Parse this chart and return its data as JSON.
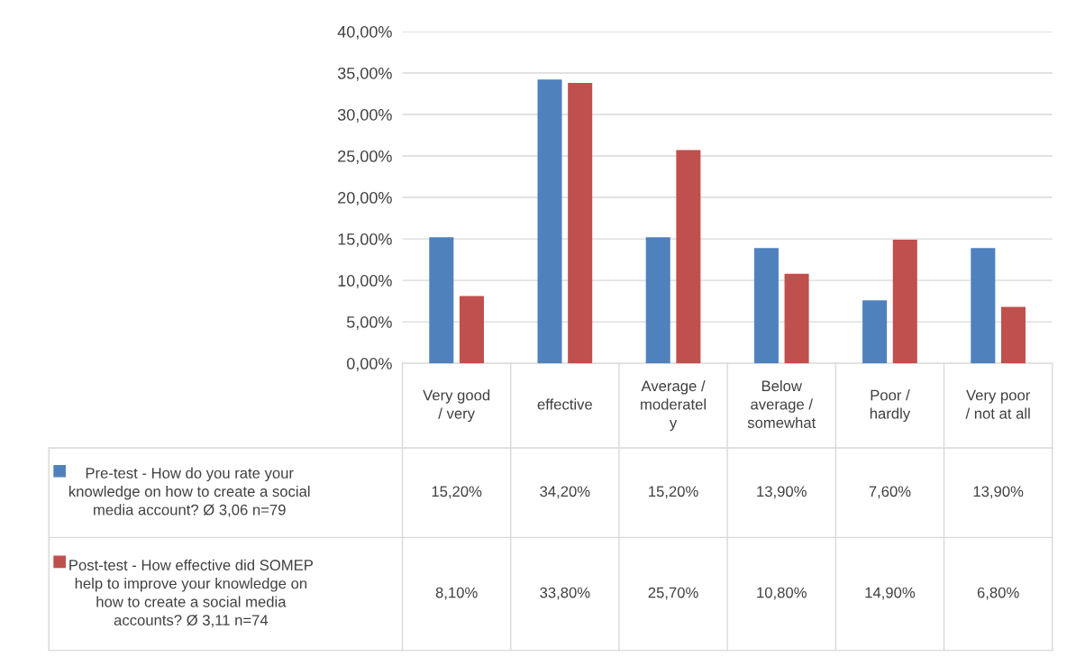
{
  "chart_data": {
    "type": "bar",
    "categories": [
      "Very good\n/ very",
      "effective",
      "Average /\nmoderatel\ny",
      "Below\naverage /\nsomewhat",
      "Poor /\nhardly",
      "Very poor\n/ not at all"
    ],
    "series": [
      {
        "name": "Pre-test - How do you rate your\nknowledge on how to create a social\nmedia account? Ø 3,06 n=79",
        "color": "#4f81bd",
        "values": [
          15.2,
          34.2,
          15.2,
          13.9,
          7.6,
          13.9
        ],
        "value_labels": [
          "15,20%",
          "34,20%",
          "15,20%",
          "13,90%",
          "7,60%",
          "13,90%"
        ]
      },
      {
        "name": "Post-test - How effective did SOMEP\nhelp to improve your knowledge on\nhow to create a social media\naccounts? Ø 3,11 n=74",
        "color": "#c0504d",
        "values": [
          8.1,
          33.8,
          25.7,
          10.8,
          14.9,
          6.8
        ],
        "value_labels": [
          "8,10%",
          "33,80%",
          "25,70%",
          "10,80%",
          "14,90%",
          "6,80%"
        ]
      }
    ],
    "ylim": [
      0,
      40
    ],
    "yticks": [
      {
        "value": 0,
        "label": "0,00%"
      },
      {
        "value": 5,
        "label": "5,00%"
      },
      {
        "value": 10,
        "label": "10,00%"
      },
      {
        "value": 15,
        "label": "15,00%"
      },
      {
        "value": 20,
        "label": "20,00%"
      },
      {
        "value": 25,
        "label": "25,00%"
      },
      {
        "value": 30,
        "label": "30,00%"
      },
      {
        "value": 35,
        "label": "35,00%"
      },
      {
        "value": 40,
        "label": "40,00%"
      }
    ],
    "grid": "y",
    "legend": "bottom left"
  }
}
